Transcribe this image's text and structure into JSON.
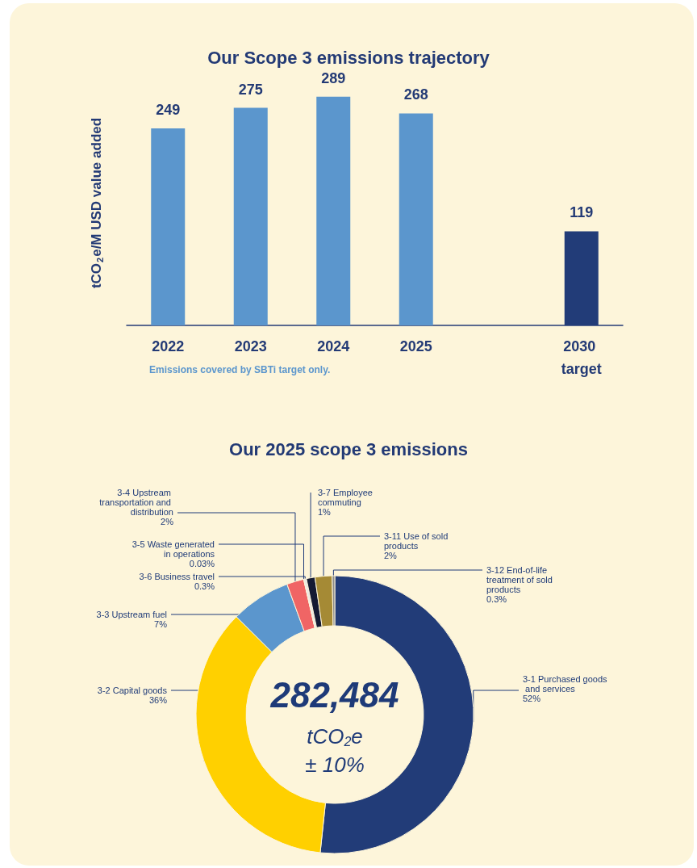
{
  "chart_data": [
    {
      "type": "bar",
      "title": "Our Scope 3 emissions trajectory",
      "ylabel": "tCO$_{2}$e/M USD value added",
      "categories": [
        "2022",
        "2023",
        "2024",
        "2025",
        null,
        "2030 target"
      ],
      "values": [
        249,
        275,
        289,
        268,
        null,
        119
      ],
      "colors": [
        "#5b96cd",
        "#5b96cd",
        "#5b96cd",
        "#5b96cd",
        "#5b96cd",
        "#223c78"
      ],
      "data_labels": true,
      "grid": false,
      "legend": false,
      "annotations": [
        "Emissions covered by SBTi target only."
      ]
    },
    {
      "type": "donut",
      "title": "Our 2025 scope 3 emissions",
      "categories": [
        "3-1 Purchased goods and services",
        "3-2 Capital goods",
        "3-3 Upstream fuel",
        "3-4 Upstream transportation and distribution",
        "3-5 Waste generated in operations",
        "3-6 Business travel",
        "3-7 Employee commuting",
        "3-11 Use of sold products",
        "3-12 End-of-life treatment of sold products"
      ],
      "values": [
        52,
        36,
        7,
        2,
        0.03,
        0.3,
        1,
        2,
        0.3
      ],
      "value_labels": [
        "52%",
        "36%",
        "7%",
        "2%",
        "0.03%",
        "0.3%",
        "1%",
        "2%",
        "0.3%"
      ],
      "colors": [
        "#223c78",
        "#ffd000",
        "#5b96cd",
        "#f06565",
        "#c7c7c7",
        "#e8e8e8",
        "#141a33",
        "#a58a35",
        "#8a8a8a"
      ],
      "legend": false,
      "annotations": [
        "282,484",
        "tCO$_{2}$e",
        "± 10%"
      ]
    }
  ]
}
